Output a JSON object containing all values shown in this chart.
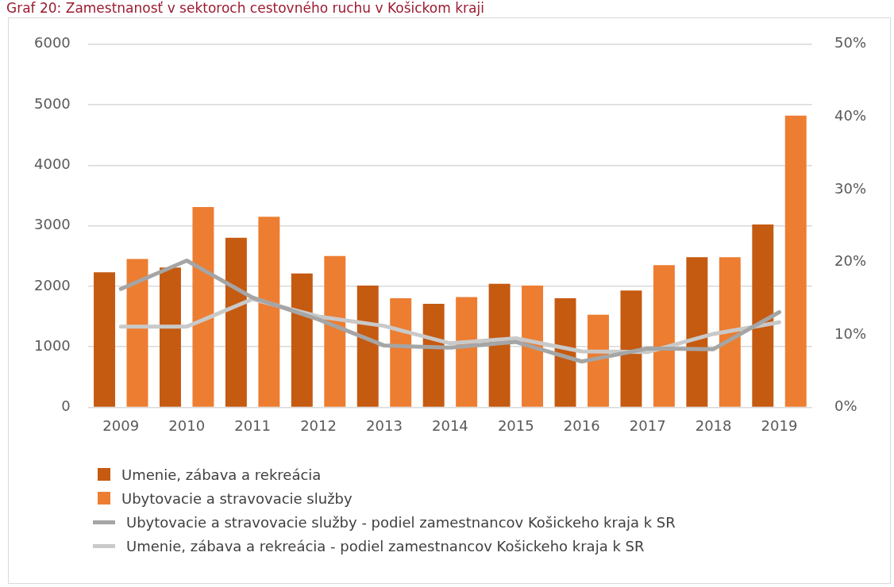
{
  "chart_data": {
    "type": "bar",
    "title": "Graf 20: Zamestnanosť v sektoroch cestovného ruchu v Košickom kraji",
    "categories": [
      "2009",
      "2010",
      "2011",
      "2012",
      "2013",
      "2014",
      "2015",
      "2016",
      "2017",
      "2018",
      "2019"
    ],
    "series": [
      {
        "name": "Umenie, zábava a rekreácia",
        "color": "#c55a11",
        "values": [
          2230,
          2310,
          2800,
          2210,
          2010,
          1710,
          2040,
          1800,
          1930,
          2480,
          3020
        ]
      },
      {
        "name": "Ubytovacie a stravovacie služby",
        "color": "#ed7d31",
        "values": [
          2450,
          3310,
          3150,
          2500,
          1800,
          1820,
          2010,
          1530,
          2350,
          2480,
          4820
        ]
      },
      {
        "name": "Ubytovacie a stravovacie služby - podiel zamestnancov Košickeho kraja k SR",
        "type": "line",
        "axis": "y2",
        "color": "#a5a5a5",
        "values": [
          16.3,
          20.2,
          15.1,
          12.1,
          8.5,
          8.2,
          9.0,
          6.3,
          8.1,
          8.0,
          13.1
        ]
      },
      {
        "name": "Umenie, zábava a rekreácia - podiel zamestnancov Košickeho kraja k SR",
        "type": "line",
        "axis": "y2",
        "color": "#c9c9c9",
        "values": [
          11.1,
          11.1,
          14.9,
          12.5,
          11.2,
          8.8,
          9.5,
          7.7,
          7.6,
          10.1,
          11.7
        ]
      }
    ],
    "ylim": [
      0,
      6000
    ],
    "yticks": [
      0,
      1000,
      2000,
      3000,
      4000,
      5000,
      6000
    ],
    "y2lim": [
      0,
      50
    ],
    "y2ticks": [
      {
        "value": 0,
        "label": "0%"
      },
      {
        "value": 10,
        "label": "10%"
      },
      {
        "value": 20,
        "label": "20%"
      },
      {
        "value": 30,
        "label": "30%"
      },
      {
        "value": 40,
        "label": "40%"
      },
      {
        "value": 50,
        "label": "50%"
      }
    ],
    "grid": "y",
    "legend": "bottom",
    "marker": "none",
    "line_style": "solid"
  }
}
